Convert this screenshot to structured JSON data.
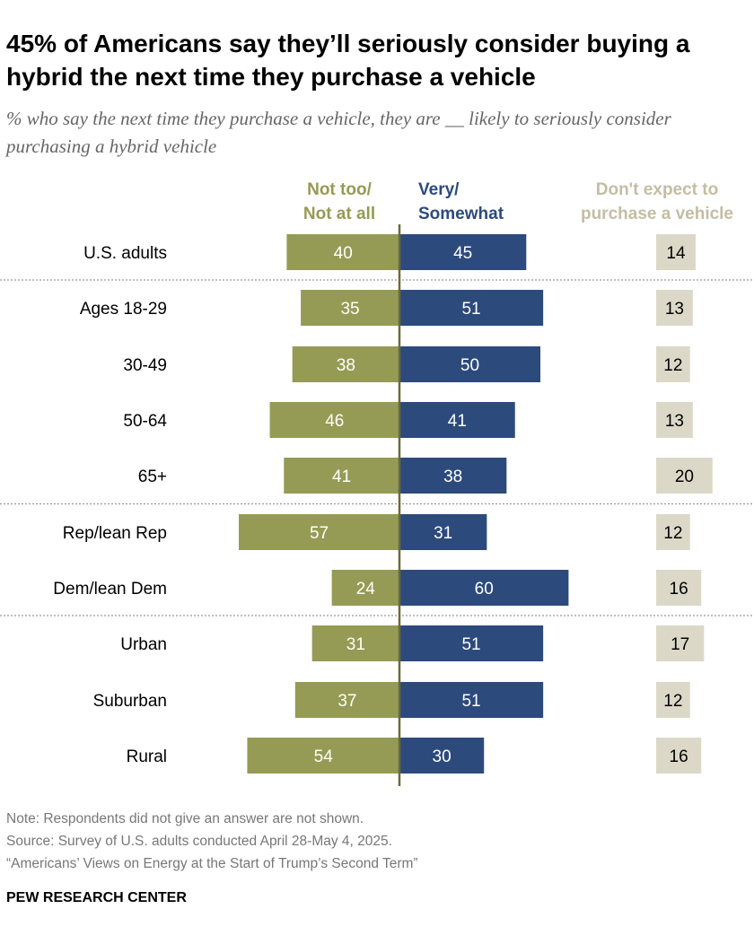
{
  "title": "45% of Americans say they’ll seriously consider buying a hybrid the next time they purchase a vehicle",
  "subtitle": "% who say the next time they purchase a vehicle, they are __ likely to seriously consider purchasing a hybrid vehicle",
  "notes": {
    "note": "Note: Respondents did not give an answer are not shown.",
    "source": "Source: Survey of U.S. adults conducted April 28-May 4, 2025.",
    "report": "“Americans’ Views on Energy at the Start of Trump’s Second Term”"
  },
  "brand": "PEW RESEARCH CENTER",
  "colors": {
    "not": "#959b54",
    "very": "#2c4a7c",
    "dont": "#dcd8c8",
    "dont_header": "#c4bda3",
    "axis": "#6b6a3a"
  },
  "chart_data": {
    "type": "bar",
    "orientation": "diverging-horizontal",
    "categories": [
      "U.S. adults",
      "Ages 18-29",
      "30-49",
      "50-64",
      "65+",
      "Rep/lean Rep",
      "Dem/lean Dem",
      "Urban",
      "Suburban",
      "Rural"
    ],
    "groups_separated_after": [
      0,
      4,
      6
    ],
    "series": [
      {
        "name": "Not too/\nNot at all",
        "label_lines": [
          "Not too/",
          "Not at all"
        ],
        "values": [
          40,
          35,
          38,
          46,
          41,
          57,
          24,
          31,
          37,
          54
        ]
      },
      {
        "name": "Very/\nSomewhat",
        "label_lines": [
          "Very/",
          "Somewhat"
        ],
        "values": [
          45,
          51,
          50,
          41,
          38,
          31,
          60,
          51,
          51,
          30
        ]
      },
      {
        "name": "Don't expect to\npurchase a vehicle",
        "label_lines": [
          "Don't expect to",
          "purchase a vehicle"
        ],
        "values": [
          14,
          13,
          12,
          13,
          20,
          12,
          16,
          17,
          12,
          16
        ]
      }
    ]
  }
}
